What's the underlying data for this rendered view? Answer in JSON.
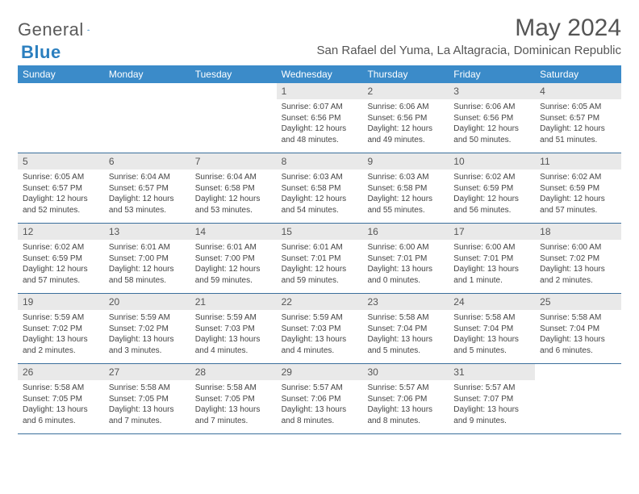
{
  "logo": {
    "text1": "General",
    "text2": "Blue"
  },
  "title": "May 2024",
  "location": "San Rafael del Yuma, La Altagracia, Dominican Republic",
  "colors": {
    "header_bg": "#3b8bc9",
    "daynum_bg": "#e9e9e9",
    "week_border": "#3b6f9c",
    "text": "#444",
    "title": "#555"
  },
  "weekdays": [
    "Sunday",
    "Monday",
    "Tuesday",
    "Wednesday",
    "Thursday",
    "Friday",
    "Saturday"
  ],
  "weeks": [
    [
      {
        "n": "",
        "rise": "",
        "set": "",
        "dayl": ""
      },
      {
        "n": "",
        "rise": "",
        "set": "",
        "dayl": ""
      },
      {
        "n": "",
        "rise": "",
        "set": "",
        "dayl": ""
      },
      {
        "n": "1",
        "rise": "Sunrise: 6:07 AM",
        "set": "Sunset: 6:56 PM",
        "dayl": "Daylight: 12 hours and 48 minutes."
      },
      {
        "n": "2",
        "rise": "Sunrise: 6:06 AM",
        "set": "Sunset: 6:56 PM",
        "dayl": "Daylight: 12 hours and 49 minutes."
      },
      {
        "n": "3",
        "rise": "Sunrise: 6:06 AM",
        "set": "Sunset: 6:56 PM",
        "dayl": "Daylight: 12 hours and 50 minutes."
      },
      {
        "n": "4",
        "rise": "Sunrise: 6:05 AM",
        "set": "Sunset: 6:57 PM",
        "dayl": "Daylight: 12 hours and 51 minutes."
      }
    ],
    [
      {
        "n": "5",
        "rise": "Sunrise: 6:05 AM",
        "set": "Sunset: 6:57 PM",
        "dayl": "Daylight: 12 hours and 52 minutes."
      },
      {
        "n": "6",
        "rise": "Sunrise: 6:04 AM",
        "set": "Sunset: 6:57 PM",
        "dayl": "Daylight: 12 hours and 53 minutes."
      },
      {
        "n": "7",
        "rise": "Sunrise: 6:04 AM",
        "set": "Sunset: 6:58 PM",
        "dayl": "Daylight: 12 hours and 53 minutes."
      },
      {
        "n": "8",
        "rise": "Sunrise: 6:03 AM",
        "set": "Sunset: 6:58 PM",
        "dayl": "Daylight: 12 hours and 54 minutes."
      },
      {
        "n": "9",
        "rise": "Sunrise: 6:03 AM",
        "set": "Sunset: 6:58 PM",
        "dayl": "Daylight: 12 hours and 55 minutes."
      },
      {
        "n": "10",
        "rise": "Sunrise: 6:02 AM",
        "set": "Sunset: 6:59 PM",
        "dayl": "Daylight: 12 hours and 56 minutes."
      },
      {
        "n": "11",
        "rise": "Sunrise: 6:02 AM",
        "set": "Sunset: 6:59 PM",
        "dayl": "Daylight: 12 hours and 57 minutes."
      }
    ],
    [
      {
        "n": "12",
        "rise": "Sunrise: 6:02 AM",
        "set": "Sunset: 6:59 PM",
        "dayl": "Daylight: 12 hours and 57 minutes."
      },
      {
        "n": "13",
        "rise": "Sunrise: 6:01 AM",
        "set": "Sunset: 7:00 PM",
        "dayl": "Daylight: 12 hours and 58 minutes."
      },
      {
        "n": "14",
        "rise": "Sunrise: 6:01 AM",
        "set": "Sunset: 7:00 PM",
        "dayl": "Daylight: 12 hours and 59 minutes."
      },
      {
        "n": "15",
        "rise": "Sunrise: 6:01 AM",
        "set": "Sunset: 7:01 PM",
        "dayl": "Daylight: 12 hours and 59 minutes."
      },
      {
        "n": "16",
        "rise": "Sunrise: 6:00 AM",
        "set": "Sunset: 7:01 PM",
        "dayl": "Daylight: 13 hours and 0 minutes."
      },
      {
        "n": "17",
        "rise": "Sunrise: 6:00 AM",
        "set": "Sunset: 7:01 PM",
        "dayl": "Daylight: 13 hours and 1 minute."
      },
      {
        "n": "18",
        "rise": "Sunrise: 6:00 AM",
        "set": "Sunset: 7:02 PM",
        "dayl": "Daylight: 13 hours and 2 minutes."
      }
    ],
    [
      {
        "n": "19",
        "rise": "Sunrise: 5:59 AM",
        "set": "Sunset: 7:02 PM",
        "dayl": "Daylight: 13 hours and 2 minutes."
      },
      {
        "n": "20",
        "rise": "Sunrise: 5:59 AM",
        "set": "Sunset: 7:02 PM",
        "dayl": "Daylight: 13 hours and 3 minutes."
      },
      {
        "n": "21",
        "rise": "Sunrise: 5:59 AM",
        "set": "Sunset: 7:03 PM",
        "dayl": "Daylight: 13 hours and 4 minutes."
      },
      {
        "n": "22",
        "rise": "Sunrise: 5:59 AM",
        "set": "Sunset: 7:03 PM",
        "dayl": "Daylight: 13 hours and 4 minutes."
      },
      {
        "n": "23",
        "rise": "Sunrise: 5:58 AM",
        "set": "Sunset: 7:04 PM",
        "dayl": "Daylight: 13 hours and 5 minutes."
      },
      {
        "n": "24",
        "rise": "Sunrise: 5:58 AM",
        "set": "Sunset: 7:04 PM",
        "dayl": "Daylight: 13 hours and 5 minutes."
      },
      {
        "n": "25",
        "rise": "Sunrise: 5:58 AM",
        "set": "Sunset: 7:04 PM",
        "dayl": "Daylight: 13 hours and 6 minutes."
      }
    ],
    [
      {
        "n": "26",
        "rise": "Sunrise: 5:58 AM",
        "set": "Sunset: 7:05 PM",
        "dayl": "Daylight: 13 hours and 6 minutes."
      },
      {
        "n": "27",
        "rise": "Sunrise: 5:58 AM",
        "set": "Sunset: 7:05 PM",
        "dayl": "Daylight: 13 hours and 7 minutes."
      },
      {
        "n": "28",
        "rise": "Sunrise: 5:58 AM",
        "set": "Sunset: 7:05 PM",
        "dayl": "Daylight: 13 hours and 7 minutes."
      },
      {
        "n": "29",
        "rise": "Sunrise: 5:57 AM",
        "set": "Sunset: 7:06 PM",
        "dayl": "Daylight: 13 hours and 8 minutes."
      },
      {
        "n": "30",
        "rise": "Sunrise: 5:57 AM",
        "set": "Sunset: 7:06 PM",
        "dayl": "Daylight: 13 hours and 8 minutes."
      },
      {
        "n": "31",
        "rise": "Sunrise: 5:57 AM",
        "set": "Sunset: 7:07 PM",
        "dayl": "Daylight: 13 hours and 9 minutes."
      },
      {
        "n": "",
        "rise": "",
        "set": "",
        "dayl": ""
      }
    ]
  ]
}
